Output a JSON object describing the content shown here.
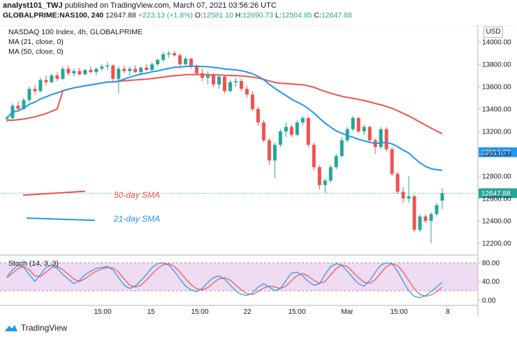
{
  "header": {
    "user": "analyst101_TWJ",
    "published_text": "published on TradingView.com, March 07, 2021 03:56:26 UTC"
  },
  "ohlc": {
    "symbol": "GLOBALPRIME:NAS100, 240",
    "last": "12647.88",
    "change": "+223.13 (+1.8%)",
    "o_label": "O:",
    "o": "12581.10",
    "h_label": "H:",
    "h": "12690.73",
    "l_label": "L:",
    "l": "12504.85",
    "c_label": "C:",
    "c": "12647.88"
  },
  "legend": {
    "title": "NASDAQ 100 Index, 4h, GLOBALPRIME",
    "ma21": "MA (21, close, 0)",
    "ma50": "MA (50, close, 0)"
  },
  "currency": "USD",
  "stoch_label": "Stoch (14, 3, 3)",
  "footer": {
    "brand": "TradingView"
  },
  "colors": {
    "up": "#26a69a",
    "down": "#ef5350",
    "ma21": "#2196f3",
    "ma50": "#ef5350",
    "stoch_k": "#2196f3",
    "stoch_d": "#ef5350",
    "stoch_band": "#e1bee7"
  },
  "chart_data": [
    {
      "type": "candlestick",
      "title": "NASDAQ 100 Index, 4h, GLOBALPRIME",
      "ylim": [
        12100,
        14150
      ],
      "y_ticks": [
        12200,
        12400,
        12600,
        12800,
        13000,
        13200,
        13400,
        13600,
        13800,
        14000
      ],
      "y_tick_labels": [
        "12200.00",
        "12400.00",
        "12600.00",
        "12800.00",
        "13000.00",
        "13200.00",
        "13400.00",
        "13600.00",
        "13800.00",
        "14000.00"
      ],
      "x_tick_labels": [
        "15:00",
        "15",
        "15:00",
        "22",
        "15:00",
        "Mar",
        "15:00",
        "8"
      ],
      "price_labels": [
        {
          "value": 13013.77,
          "text": "13013.77",
          "color": "#2196f3"
        },
        {
          "value": 12647.88,
          "text": "12647.88",
          "color": "#26a69a"
        }
      ],
      "annotations": [
        {
          "text": "50-day SMA",
          "color": "#ef5350"
        },
        {
          "text": "21-day SMA",
          "color": "#2196f3"
        }
      ],
      "candles": [
        [
          13310,
          13340,
          13280,
          13320
        ],
        [
          13320,
          13450,
          13300,
          13430
        ],
        [
          13430,
          13470,
          13380,
          13400
        ],
        [
          13400,
          13500,
          13390,
          13480
        ],
        [
          13480,
          13600,
          13460,
          13580
        ],
        [
          13580,
          13620,
          13530,
          13560
        ],
        [
          13560,
          13680,
          13550,
          13660
        ],
        [
          13660,
          13700,
          13610,
          13640
        ],
        [
          13640,
          13720,
          13630,
          13700
        ],
        [
          13700,
          13730,
          13650,
          13670
        ],
        [
          13670,
          13780,
          13660,
          13760
        ],
        [
          13760,
          13790,
          13700,
          13720
        ],
        [
          13720,
          13760,
          13690,
          13740
        ],
        [
          13740,
          13770,
          13700,
          13710
        ],
        [
          13710,
          13760,
          13700,
          13750
        ],
        [
          13750,
          13780,
          13720,
          13730
        ],
        [
          13730,
          13770,
          13700,
          13760
        ],
        [
          13760,
          13800,
          13740,
          13780
        ],
        [
          13780,
          13820,
          13750,
          13790
        ],
        [
          13790,
          13800,
          13650,
          13670
        ],
        [
          13670,
          13780,
          13540,
          13760
        ],
        [
          13760,
          13790,
          13720,
          13740
        ],
        [
          13740,
          13780,
          13700,
          13760
        ],
        [
          13760,
          13790,
          13720,
          13730
        ],
        [
          13730,
          13780,
          13700,
          13770
        ],
        [
          13770,
          13800,
          13740,
          13750
        ],
        [
          13750,
          13820,
          13740,
          13800
        ],
        [
          13800,
          13850,
          13780,
          13840
        ],
        [
          13840,
          13910,
          13820,
          13890
        ],
        [
          13890,
          13920,
          13860,
          13900
        ],
        [
          13900,
          13920,
          13870,
          13880
        ],
        [
          13880,
          13900,
          13780,
          13800
        ],
        [
          13800,
          13870,
          13790,
          13850
        ],
        [
          13850,
          13860,
          13760,
          13780
        ],
        [
          13780,
          13800,
          13700,
          13720
        ],
        [
          13720,
          13760,
          13650,
          13680
        ],
        [
          13680,
          13740,
          13620,
          13700
        ],
        [
          13700,
          13720,
          13600,
          13620
        ],
        [
          13620,
          13700,
          13580,
          13690
        ],
        [
          13690,
          13700,
          13540,
          13560
        ],
        [
          13560,
          13660,
          13550,
          13640
        ],
        [
          13640,
          13680,
          13600,
          13650
        ],
        [
          13650,
          13670,
          13560,
          13580
        ],
        [
          13580,
          13610,
          13500,
          13530
        ],
        [
          13530,
          13560,
          13380,
          13400
        ],
        [
          13400,
          13420,
          13250,
          13280
        ],
        [
          13280,
          13300,
          13100,
          13120
        ],
        [
          13120,
          13140,
          12900,
          12940
        ],
        [
          12940,
          13100,
          12780,
          13080
        ],
        [
          13080,
          13220,
          13060,
          13200
        ],
        [
          13200,
          13280,
          13150,
          13240
        ],
        [
          13240,
          13260,
          13150,
          13170
        ],
        [
          13170,
          13300,
          13160,
          13280
        ],
        [
          13280,
          13340,
          13250,
          13320
        ],
        [
          13320,
          13330,
          13060,
          13080
        ],
        [
          13080,
          13100,
          12850,
          12880
        ],
        [
          12880,
          12900,
          12680,
          12720
        ],
        [
          12720,
          12780,
          12650,
          12760
        ],
        [
          12760,
          12900,
          12740,
          12880
        ],
        [
          12880,
          13000,
          12860,
          12980
        ],
        [
          12980,
          13150,
          12970,
          13120
        ],
        [
          13120,
          13240,
          13100,
          13220
        ],
        [
          13220,
          13340,
          13200,
          13320
        ],
        [
          13320,
          13330,
          13180,
          13200
        ],
        [
          13200,
          13260,
          13170,
          13240
        ],
        [
          13240,
          13250,
          13100,
          13120
        ],
        [
          13120,
          13140,
          13000,
          13060
        ],
        [
          13060,
          13240,
          13040,
          13220
        ],
        [
          13220,
          13240,
          13020,
          13040
        ],
        [
          13040,
          13060,
          12800,
          12820
        ],
        [
          12820,
          12840,
          12640,
          12660
        ],
        [
          12660,
          12700,
          12560,
          12600
        ],
        [
          12600,
          12800,
          12560,
          12620
        ],
        [
          12620,
          12640,
          12300,
          12320
        ],
        [
          12320,
          12460,
          12300,
          12440
        ],
        [
          12440,
          12460,
          12380,
          12400
        ],
        [
          12400,
          12480,
          12200,
          12460
        ],
        [
          12460,
          12560,
          12440,
          12540
        ],
        [
          12581.1,
          12690.73,
          12504.85,
          12647.88
        ]
      ]
    },
    {
      "type": "line",
      "title": "Stoch (14, 3, 3)",
      "ylim": [
        -10,
        95
      ],
      "y_ticks": [
        0,
        40,
        80
      ],
      "y_tick_labels": [
        "0.00",
        "40.00",
        "80.00"
      ],
      "band": [
        20,
        80
      ],
      "series": [
        {
          "values": [
            50,
            65,
            75,
            70,
            55,
            40,
            55,
            70,
            75,
            68,
            55,
            45,
            35,
            42,
            55,
            62,
            68,
            70,
            72,
            65,
            48,
            32,
            25,
            30,
            42,
            55,
            70,
            78,
            80,
            75,
            62,
            45,
            30,
            22,
            18,
            25,
            38,
            48,
            52,
            45,
            32,
            20,
            12,
            10,
            15,
            28,
            35,
            28,
            20,
            25,
            42,
            58,
            60,
            52,
            40,
            32,
            35,
            55,
            72,
            78,
            75,
            62,
            48,
            35,
            30,
            42,
            60,
            75,
            80,
            78,
            62,
            40,
            20,
            8,
            5,
            10,
            18,
            28,
            38
          ]
        },
        {
          "values": [
            48,
            58,
            68,
            72,
            65,
            52,
            50,
            60,
            70,
            72,
            65,
            55,
            45,
            40,
            46,
            55,
            62,
            67,
            70,
            69,
            60,
            45,
            32,
            28,
            32,
            43,
            56,
            68,
            76,
            78,
            72,
            60,
            46,
            33,
            24,
            22,
            27,
            37,
            46,
            48,
            43,
            32,
            22,
            14,
            12,
            18,
            26,
            30,
            28,
            25,
            30,
            42,
            53,
            57,
            51,
            42,
            36,
            40,
            54,
            68,
            75,
            72,
            60,
            48,
            38,
            36,
            44,
            58,
            72,
            78,
            74,
            60,
            42,
            24,
            12,
            8,
            11,
            18,
            28
          ]
        }
      ]
    }
  ]
}
